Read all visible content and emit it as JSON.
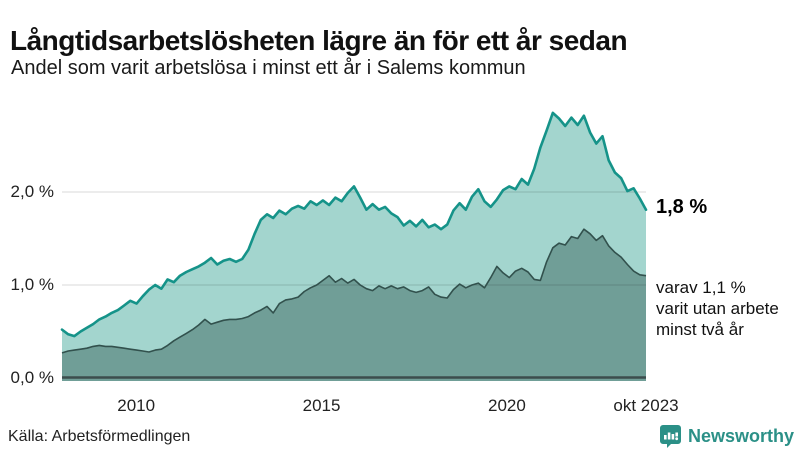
{
  "header": {
    "title": "Långtidsarbetslösheten lägre än för ett år sedan",
    "subtitle": "Andel som varit arbetslösa i minst ett år i Salems kommun"
  },
  "chart_data": {
    "type": "area",
    "title": "Långtidsarbetslösheten lägre än för ett år sedan",
    "subtitle": "Andel som varit arbetslösa i minst ett år i Salems kommun",
    "unit": "%",
    "x_start": 2008.0,
    "x_end": 2023.75,
    "x_end_label": "okt 2023",
    "ylim": [
      0,
      3.1
    ],
    "grid": "horizontal",
    "legend_position": "none",
    "y_ticks": [
      {
        "label": "0,0 %",
        "value": 0
      },
      {
        "label": "1,0 %",
        "value": 1
      },
      {
        "label": "2,0 %",
        "value": 2
      }
    ],
    "x_ticks": [
      {
        "label": "2010",
        "value": 2010
      },
      {
        "label": "2015",
        "value": 2015
      },
      {
        "label": "2020",
        "value": 2020
      },
      {
        "label": "okt 2023",
        "value": 2023.75
      }
    ],
    "series": [
      {
        "name": "Arbetslösa minst ett år",
        "line_color": "#159389",
        "fill_color": "#a3d5ce",
        "last_value": 1.8,
        "values": [
          0.52,
          0.47,
          0.45,
          0.5,
          0.54,
          0.58,
          0.63,
          0.66,
          0.7,
          0.73,
          0.78,
          0.83,
          0.8,
          0.88,
          0.95,
          1.0,
          0.96,
          1.06,
          1.03,
          1.1,
          1.14,
          1.17,
          1.2,
          1.24,
          1.29,
          1.22,
          1.26,
          1.28,
          1.25,
          1.28,
          1.38,
          1.55,
          1.7,
          1.76,
          1.72,
          1.8,
          1.76,
          1.82,
          1.85,
          1.82,
          1.9,
          1.86,
          1.91,
          1.86,
          1.94,
          1.9,
          1.99,
          2.06,
          1.94,
          1.81,
          1.87,
          1.81,
          1.84,
          1.77,
          1.73,
          1.64,
          1.69,
          1.63,
          1.7,
          1.62,
          1.65,
          1.6,
          1.65,
          1.8,
          1.88,
          1.81,
          1.95,
          2.03,
          1.9,
          1.84,
          1.92,
          2.02,
          2.06,
          2.03,
          2.14,
          2.08,
          2.25,
          2.48,
          2.66,
          2.85,
          2.79,
          2.71,
          2.8,
          2.72,
          2.82,
          2.64,
          2.52,
          2.6,
          2.34,
          2.21,
          2.15,
          2.01,
          2.04,
          1.93,
          1.81
        ]
      },
      {
        "name": "Utan arbete minst två år",
        "line_color": "#32514d",
        "fill_color": "#709e97",
        "last_value": 1.1,
        "values": [
          0.27,
          0.29,
          0.3,
          0.31,
          0.32,
          0.34,
          0.35,
          0.34,
          0.34,
          0.33,
          0.32,
          0.31,
          0.3,
          0.29,
          0.28,
          0.3,
          0.31,
          0.35,
          0.4,
          0.44,
          0.48,
          0.52,
          0.57,
          0.63,
          0.58,
          0.6,
          0.62,
          0.63,
          0.63,
          0.64,
          0.66,
          0.7,
          0.73,
          0.77,
          0.7,
          0.8,
          0.84,
          0.85,
          0.87,
          0.93,
          0.97,
          1.0,
          1.05,
          1.1,
          1.03,
          1.07,
          1.02,
          1.06,
          1.0,
          0.96,
          0.94,
          0.99,
          0.96,
          0.99,
          0.96,
          0.98,
          0.94,
          0.92,
          0.94,
          0.98,
          0.9,
          0.87,
          0.86,
          0.95,
          1.01,
          0.97,
          1.0,
          1.02,
          0.97,
          1.08,
          1.2,
          1.13,
          1.08,
          1.15,
          1.18,
          1.14,
          1.06,
          1.05,
          1.25,
          1.4,
          1.45,
          1.43,
          1.52,
          1.5,
          1.6,
          1.55,
          1.48,
          1.53,
          1.42,
          1.35,
          1.3,
          1.22,
          1.15,
          1.11,
          1.1
        ]
      }
    ]
  },
  "annotations": {
    "total_value_label": "1,8 %",
    "two_year_line1": "varav 1,1 %",
    "two_year_line2": "varit utan arbete",
    "two_year_line3": "minst två år"
  },
  "footer": {
    "source": "Källa: Arbetsförmedlingen",
    "brand": "Newsworthy"
  },
  "colors": {
    "line_total": "#159389",
    "fill_total": "#a3d5ce",
    "line_two_year": "#32514d",
    "fill_two_year": "#709e97",
    "axis_line": "#3c4d4d",
    "gridline": "#d9d9d9",
    "brand_teal": "#2b9087"
  }
}
